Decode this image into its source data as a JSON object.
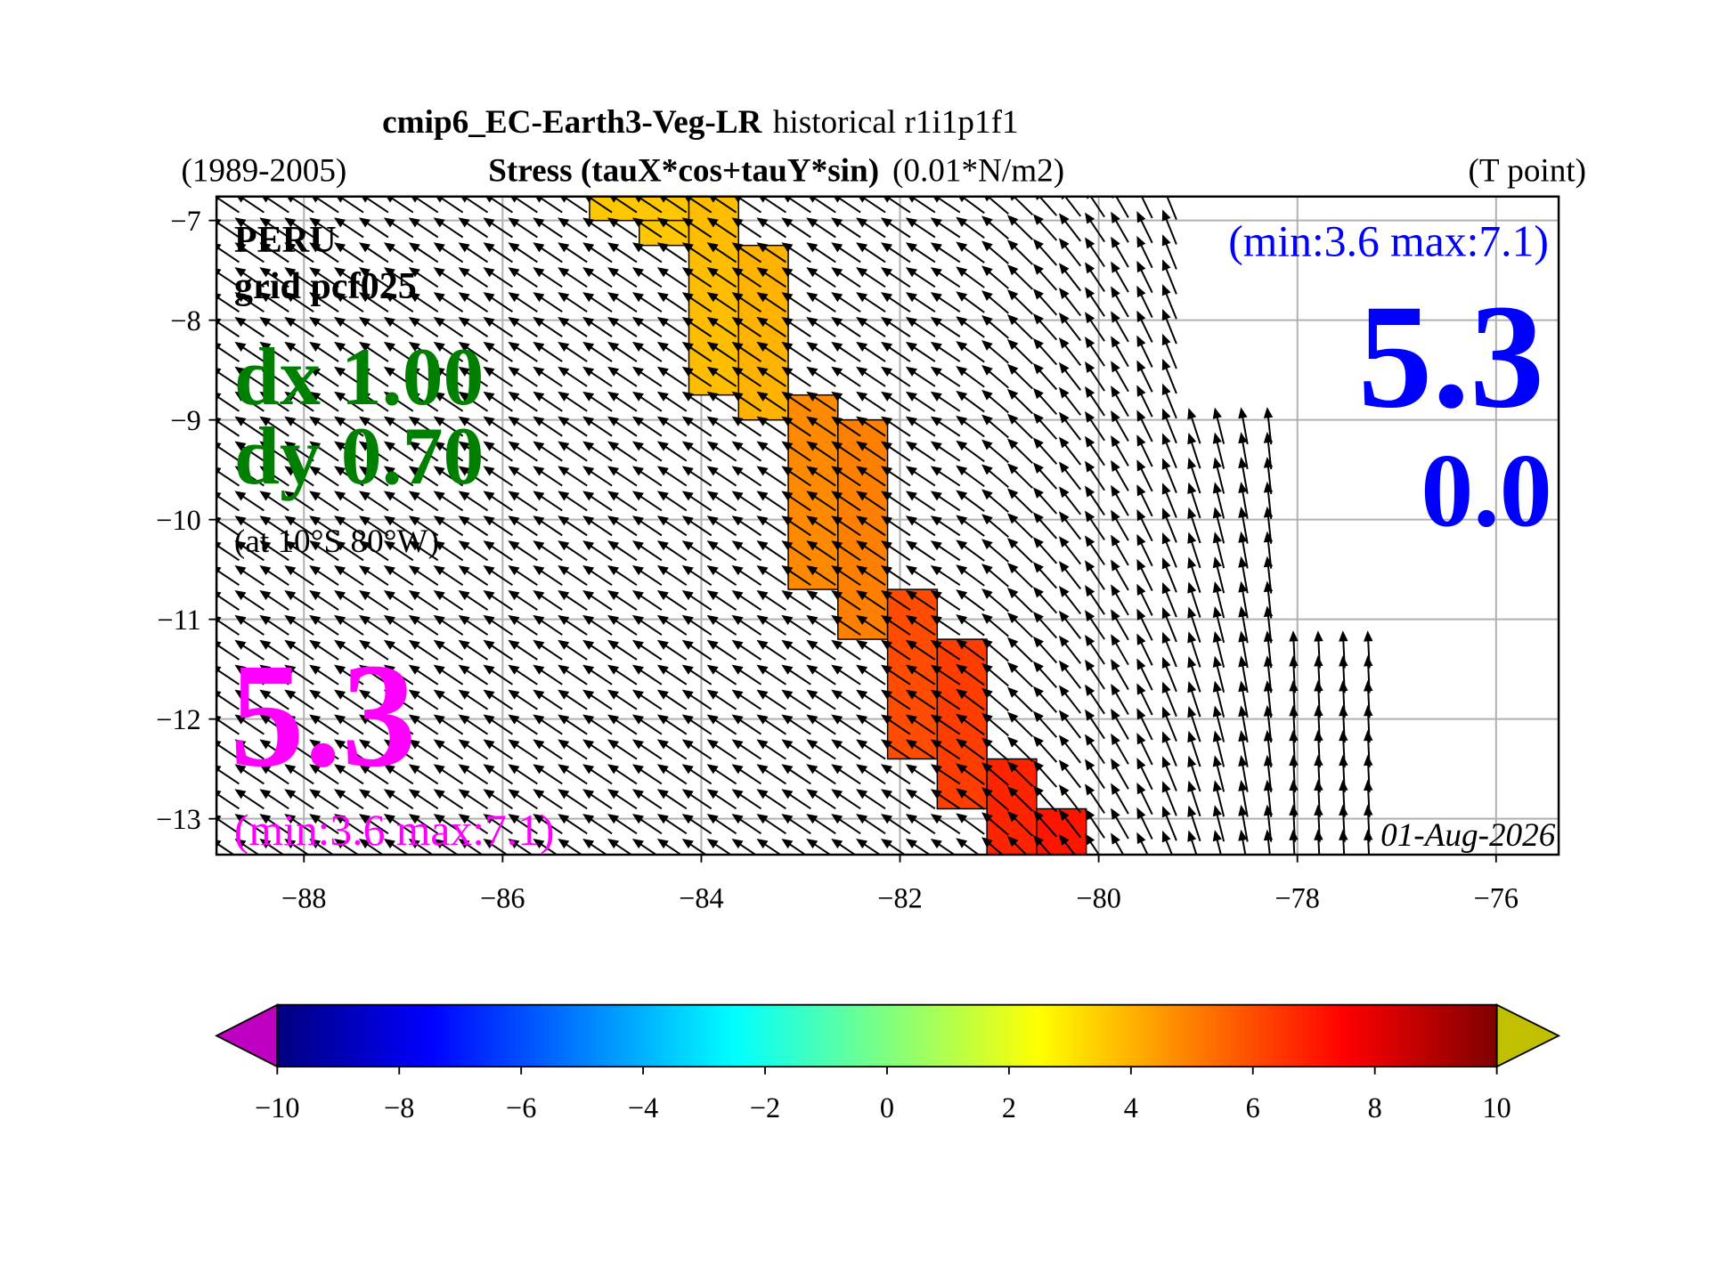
{
  "chart_data": {
    "type": "map",
    "title": {
      "model": "cmip6_EC-Earth3-Veg-LR",
      "experiment": "historical r1i1p1f1"
    },
    "subtitle": {
      "period": "(1989-2005)",
      "variable": "Stress (tauX*cos+tauY*sin)",
      "units": "(0.01*N/m2)",
      "point": "(T point)"
    },
    "annotations": {
      "region": "PERU",
      "grid": "grid pcf025",
      "dx": "dx 1.00",
      "dy": "dy 0.70",
      "location": "(at 10°S 80°W)",
      "mean": "5.3",
      "range": "(min:3.6 max:7.1)",
      "right_range": "(min:3.6 max:7.1)",
      "right_value": "5.3",
      "right_value2": "0.0",
      "date": "01-Aug-2026"
    },
    "xlim": [
      -88.88,
      -75.37
    ],
    "ylim": [
      -13.36,
      -6.76
    ],
    "xticks": [
      {
        "value": -88,
        "label": "−88"
      },
      {
        "value": -86,
        "label": "−86"
      },
      {
        "value": -84,
        "label": "−84"
      },
      {
        "value": -82,
        "label": "−82"
      },
      {
        "value": -80,
        "label": "−80"
      },
      {
        "value": -78,
        "label": "−78"
      },
      {
        "value": -76,
        "label": "−76"
      }
    ],
    "yticks": [
      {
        "value": -7,
        "label": "−7"
      },
      {
        "value": -8,
        "label": "−8"
      },
      {
        "value": -9,
        "label": "−9"
      },
      {
        "value": -10,
        "label": "−10"
      },
      {
        "value": -11,
        "label": "−11"
      },
      {
        "value": -12,
        "label": "−12"
      },
      {
        "value": -13,
        "label": "−13"
      }
    ],
    "grid": true,
    "cells": [
      {
        "lon": [
          -85.125,
          -84.125
        ],
        "lat": [
          -7.0,
          -6.76
        ],
        "value": 3.6
      },
      {
        "lon": [
          -84.625,
          -84.125
        ],
        "lat": [
          -7.25,
          -7.0
        ],
        "value": 3.6
      },
      {
        "lon": [
          -84.125,
          -83.625
        ],
        "lat": [
          -8.75,
          -6.76
        ],
        "value": 3.8
      },
      {
        "lon": [
          -83.625,
          -83.125
        ],
        "lat": [
          -9.0,
          -7.25
        ],
        "value": 4.0
      },
      {
        "lon": [
          -83.125,
          -82.625
        ],
        "lat": [
          -10.7,
          -8.75
        ],
        "value": 4.8
      },
      {
        "lon": [
          -82.625,
          -82.125
        ],
        "lat": [
          -11.2,
          -9.0
        ],
        "value": 5.0
      },
      {
        "lon": [
          -82.125,
          -81.625
        ],
        "lat": [
          -12.4,
          -10.7
        ],
        "value": 6.0
      },
      {
        "lon": [
          -81.625,
          -81.125
        ],
        "lat": [
          -12.9,
          -11.2
        ],
        "value": 6.3
      },
      {
        "lon": [
          -81.125,
          -80.625
        ],
        "lat": [
          -13.36,
          -12.4
        ],
        "value": 6.8
      },
      {
        "lon": [
          -80.625,
          -80.125
        ],
        "lat": [
          -13.36,
          -12.9
        ],
        "value": 7.1
      }
    ],
    "colorbar": {
      "clim": [
        -10,
        10
      ],
      "ticks": [
        {
          "value": -10,
          "label": "−10"
        },
        {
          "value": -8,
          "label": "−8"
        },
        {
          "value": -6,
          "label": "−6"
        },
        {
          "value": -4,
          "label": "−4"
        },
        {
          "value": -2,
          "label": "−2"
        },
        0,
        2,
        4,
        6,
        8,
        10
      ],
      "under_color": "#c000c0",
      "over_color": "#c0c000"
    }
  }
}
